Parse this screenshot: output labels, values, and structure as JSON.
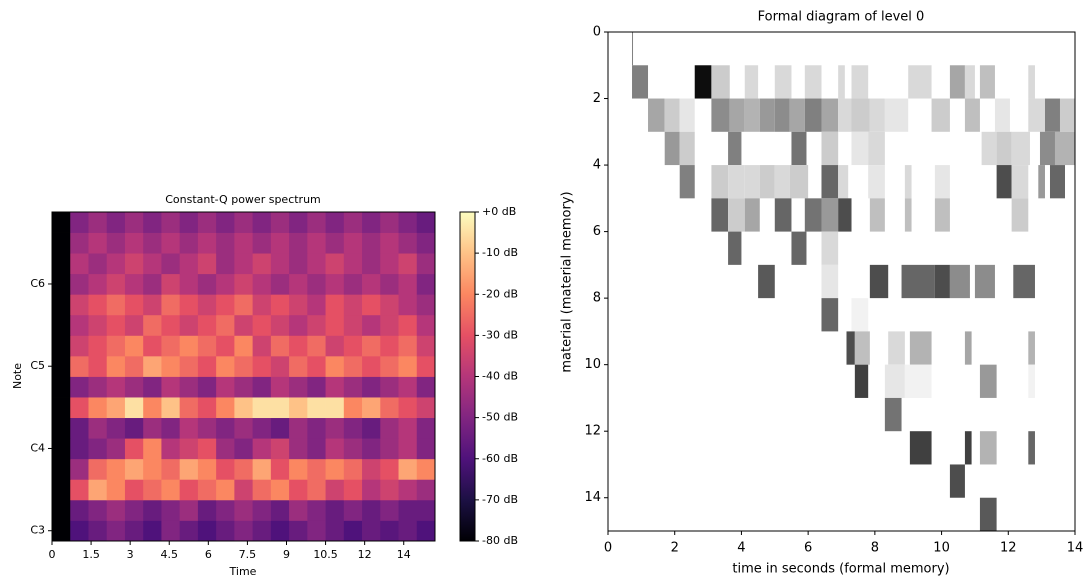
{
  "chart_data": [
    {
      "type": "heatmap",
      "title": "Constant-Q power spectrum",
      "xlabel": "Time",
      "ylabel": "Note",
      "colormap": "magma",
      "xlim": [
        0,
        14.7
      ],
      "ylim": [
        46.5,
        94.5
      ],
      "xticks": [
        0,
        1.5,
        3,
        4.5,
        6,
        7.5,
        9,
        10.5,
        12,
        {
          "value": 13.5,
          "label": "14"
        }
      ],
      "yticks": [
        {
          "value": 48,
          "label": "C3"
        },
        {
          "value": 60,
          "label": "C4"
        },
        {
          "value": 72,
          "label": "C5"
        },
        {
          "value": 84,
          "label": "C6"
        }
      ],
      "zlim": [
        -80,
        0
      ],
      "zticks": [
        {
          "value": 0,
          "label": "+0 dB"
        },
        {
          "value": -10,
          "label": "-10 dB"
        },
        {
          "value": -20,
          "label": "-20 dB"
        },
        {
          "value": -30,
          "label": "-30 dB"
        },
        {
          "value": -40,
          "label": "-40 dB"
        },
        {
          "value": -50,
          "label": "-50 dB"
        },
        {
          "value": -60,
          "label": "-60 dB"
        },
        {
          "value": -70,
          "label": "-70 dB"
        },
        {
          "value": -80,
          "label": "-80 dB"
        }
      ],
      "x_edges": [
        0,
        0.7,
        1.4,
        2.1,
        2.8,
        3.5,
        4.2,
        4.9,
        5.6,
        6.3,
        7,
        7.7,
        8.4,
        9.1,
        9.8,
        10.5,
        11.2,
        11.9,
        12.6,
        13.3,
        14,
        14.7
      ],
      "y_edges": [
        46.5,
        49.5,
        52.5,
        55.5,
        58.5,
        61.5,
        64.5,
        67.5,
        70.5,
        73.5,
        76.5,
        79.5,
        82.5,
        85.5,
        88.5,
        91.5,
        94.5
      ],
      "z": [
        [
          -80,
          -60,
          -55,
          -50,
          -55,
          -60,
          -50,
          -55,
          -60,
          -55,
          -50,
          -55,
          -60,
          -55,
          -50,
          -55,
          -60,
          -55,
          -58,
          -55,
          -60
        ],
        [
          -80,
          -55,
          -50,
          -45,
          -50,
          -55,
          -50,
          -45,
          -55,
          -50,
          -45,
          -50,
          -55,
          -45,
          -50,
          -55,
          -50,
          -55,
          -50,
          -55,
          -55
        ],
        [
          -80,
          -30,
          -15,
          -20,
          -30,
          -25,
          -20,
          -30,
          -25,
          -20,
          -35,
          -25,
          -20,
          -30,
          -25,
          -35,
          -30,
          -40,
          -35,
          -40,
          -45
        ],
        [
          -80,
          -45,
          -25,
          -20,
          -15,
          -20,
          -25,
          -15,
          -20,
          -30,
          -25,
          -15,
          -30,
          -20,
          -25,
          -20,
          -25,
          -35,
          -30,
          -15,
          -20
        ],
        [
          -80,
          -55,
          -50,
          -45,
          -30,
          -20,
          -40,
          -35,
          -30,
          -45,
          -50,
          -40,
          -35,
          -45,
          -50,
          -40,
          -45,
          -50,
          -45,
          -40,
          -50
        ],
        [
          -80,
          -55,
          -45,
          -50,
          -55,
          -45,
          -50,
          -40,
          -45,
          -50,
          -45,
          -50,
          -55,
          -45,
          -50,
          -45,
          -50,
          -55,
          -45,
          -40,
          -50
        ],
        [
          -80,
          -30,
          -20,
          -15,
          -5,
          -20,
          -10,
          -25,
          -30,
          -20,
          -10,
          -5,
          -5,
          -10,
          -5,
          -5,
          -20,
          -15,
          -25,
          -30,
          -35
        ],
        [
          -80,
          -50,
          -45,
          -40,
          -45,
          -50,
          -40,
          -45,
          -50,
          -40,
          -45,
          -50,
          -40,
          -45,
          -50,
          -40,
          -45,
          -50,
          -45,
          -40,
          -50
        ],
        [
          -80,
          -25,
          -30,
          -20,
          -25,
          -15,
          -20,
          -25,
          -30,
          -20,
          -25,
          -30,
          -35,
          -25,
          -30,
          -20,
          -25,
          -30,
          -25,
          -20,
          -30
        ],
        [
          -80,
          -35,
          -30,
          -25,
          -20,
          -30,
          -25,
          -20,
          -25,
          -30,
          -20,
          -35,
          -25,
          -30,
          -25,
          -35,
          -30,
          -25,
          -30,
          -25,
          -35
        ],
        [
          -80,
          -40,
          -35,
          -30,
          -35,
          -25,
          -30,
          -35,
          -30,
          -25,
          -35,
          -30,
          -35,
          -40,
          -35,
          -30,
          -35,
          -40,
          -35,
          -30,
          -40
        ],
        [
          -80,
          -35,
          -30,
          -25,
          -30,
          -35,
          -25,
          -30,
          -35,
          -30,
          -25,
          -35,
          -30,
          -35,
          -40,
          -30,
          -35,
          -30,
          -35,
          -40,
          -45
        ],
        [
          -80,
          -45,
          -40,
          -35,
          -40,
          -45,
          -35,
          -40,
          -45,
          -40,
          -35,
          -40,
          -45,
          -40,
          -45,
          -40,
          -45,
          -40,
          -45,
          -40,
          -50
        ],
        [
          -80,
          -40,
          -45,
          -40,
          -35,
          -40,
          -45,
          -40,
          -35,
          -45,
          -40,
          -35,
          -40,
          -45,
          -40,
          -35,
          -40,
          -45,
          -40,
          -35,
          -45
        ],
        [
          -80,
          -45,
          -40,
          -45,
          -40,
          -45,
          -40,
          -45,
          -40,
          -45,
          -40,
          -45,
          -40,
          -45,
          -40,
          -45,
          -40,
          -45,
          -40,
          -45,
          -50
        ],
        [
          -80,
          -50,
          -45,
          -50,
          -45,
          -50,
          -45,
          -50,
          -45,
          -50,
          -45,
          -50,
          -45,
          -50,
          -45,
          -50,
          -45,
          -50,
          -45,
          -50,
          -55
        ]
      ]
    },
    {
      "type": "blocks",
      "title": "Formal diagram of level 0",
      "xlabel": "time in seconds (formal memory)",
      "ylabel": "material (material memory)",
      "colormap": "gray_r",
      "xlim": [
        0,
        14
      ],
      "ylim": [
        0,
        15
      ],
      "y_inverted": true,
      "xticks": [
        0,
        2,
        4,
        6,
        8,
        10,
        12,
        14
      ],
      "yticks": [
        0,
        2,
        4,
        6,
        8,
        10,
        12,
        14
      ],
      "cells": [
        [
          0.72,
          0.75,
          0,
          0.5
        ],
        [
          0.72,
          1.2,
          1,
          0.5
        ],
        [
          2.6,
          3.1,
          1,
          0.95
        ],
        [
          3.1,
          3.65,
          1,
          0.2
        ],
        [
          4.1,
          4.5,
          1,
          0.15
        ],
        [
          5.0,
          5.5,
          1,
          0.15
        ],
        [
          5.9,
          6.4,
          1,
          0.15
        ],
        [
          6.9,
          7.1,
          1,
          0.15
        ],
        [
          7.3,
          7.8,
          1,
          0.15
        ],
        [
          9.0,
          9.7,
          1,
          0.15
        ],
        [
          10.25,
          10.7,
          1,
          0.35
        ],
        [
          10.7,
          11.0,
          1,
          0.15
        ],
        [
          11.15,
          11.6,
          1,
          0.25
        ],
        [
          12.6,
          12.8,
          1,
          0.15
        ],
        [
          1.2,
          1.7,
          2,
          0.35
        ],
        [
          1.7,
          2.15,
          2,
          0.2
        ],
        [
          2.15,
          2.6,
          2,
          0.1
        ],
        [
          3.1,
          3.65,
          2,
          0.45
        ],
        [
          3.65,
          4.1,
          2,
          0.35
        ],
        [
          4.1,
          4.55,
          2,
          0.3
        ],
        [
          4.55,
          5.0,
          2,
          0.4
        ],
        [
          5.0,
          5.45,
          2,
          0.45
        ],
        [
          5.45,
          5.9,
          2,
          0.35
        ],
        [
          5.9,
          6.4,
          2,
          0.5
        ],
        [
          6.4,
          6.9,
          2,
          0.35
        ],
        [
          6.9,
          7.3,
          2,
          0.15
        ],
        [
          7.3,
          7.85,
          2,
          0.2
        ],
        [
          7.85,
          8.3,
          2,
          0.15
        ],
        [
          8.3,
          9.0,
          2,
          0.1
        ],
        [
          9.7,
          10.25,
          2,
          0.2
        ],
        [
          10.7,
          11.15,
          2,
          0.25
        ],
        [
          11.6,
          12.05,
          2,
          0.1
        ],
        [
          12.6,
          13.1,
          2,
          0.15
        ],
        [
          13.1,
          13.55,
          2,
          0.5
        ],
        [
          13.55,
          14,
          2,
          0.2
        ],
        [
          1.7,
          2.15,
          3,
          0.4
        ],
        [
          2.15,
          2.6,
          3,
          0.2
        ],
        [
          3.6,
          4.0,
          3,
          0.5
        ],
        [
          5.5,
          5.95,
          3,
          0.55
        ],
        [
          6.4,
          6.9,
          3,
          0.2
        ],
        [
          7.3,
          7.8,
          3,
          0.1
        ],
        [
          7.8,
          8.3,
          3,
          0.15
        ],
        [
          11.2,
          11.65,
          3,
          0.15
        ],
        [
          11.65,
          12.1,
          3,
          0.2
        ],
        [
          12.1,
          12.65,
          3,
          0.15
        ],
        [
          12.95,
          13.4,
          3,
          0.45
        ],
        [
          13.4,
          14,
          3,
          0.3
        ],
        [
          2.15,
          2.6,
          4,
          0.5
        ],
        [
          3.1,
          3.6,
          4,
          0.2
        ],
        [
          3.6,
          4.1,
          4,
          0.15
        ],
        [
          4.1,
          4.55,
          4,
          0.15
        ],
        [
          4.55,
          5.0,
          4,
          0.2
        ],
        [
          5.0,
          5.45,
          4,
          0.15
        ],
        [
          5.45,
          6.0,
          4,
          0.2
        ],
        [
          6.4,
          6.9,
          4,
          0.6
        ],
        [
          6.9,
          7.2,
          4,
          0.15
        ],
        [
          7.8,
          8.3,
          4,
          0.1
        ],
        [
          8.9,
          9.1,
          4,
          0.15
        ],
        [
          9.8,
          10.25,
          4,
          0.1
        ],
        [
          11.65,
          12.1,
          4,
          0.7
        ],
        [
          12.1,
          12.6,
          4,
          0.15
        ],
        [
          12.9,
          13.1,
          4,
          0.4
        ],
        [
          13.25,
          13.7,
          4,
          0.6
        ],
        [
          3.1,
          3.6,
          5,
          0.6
        ],
        [
          3.6,
          4.1,
          5,
          0.2
        ],
        [
          4.1,
          4.55,
          5,
          0.35
        ],
        [
          5.0,
          5.5,
          5,
          0.6
        ],
        [
          5.9,
          6.4,
          5,
          0.55
        ],
        [
          6.4,
          6.9,
          5,
          0.4
        ],
        [
          6.9,
          7.3,
          5,
          0.7
        ],
        [
          7.85,
          8.3,
          5,
          0.25
        ],
        [
          8.9,
          9.1,
          5,
          0.25
        ],
        [
          9.8,
          10.25,
          5,
          0.25
        ],
        [
          12.1,
          12.6,
          5,
          0.2
        ],
        [
          3.6,
          4.0,
          6,
          0.6
        ],
        [
          5.5,
          5.95,
          6,
          0.6
        ],
        [
          6.4,
          6.9,
          6,
          0.15
        ],
        [
          4.5,
          5.0,
          7,
          0.65
        ],
        [
          6.4,
          6.9,
          7,
          0.1
        ],
        [
          7.85,
          8.4,
          7,
          0.7
        ],
        [
          8.8,
          9.8,
          7,
          0.6
        ],
        [
          9.8,
          10.25,
          7,
          0.7
        ],
        [
          10.25,
          10.85,
          7,
          0.45
        ],
        [
          11.0,
          11.6,
          7,
          0.45
        ],
        [
          12.15,
          12.8,
          7,
          0.6
        ],
        [
          6.4,
          6.9,
          8,
          0.6
        ],
        [
          7.3,
          7.8,
          8,
          0.05
        ],
        [
          7.15,
          7.4,
          9,
          0.7
        ],
        [
          7.4,
          7.85,
          9,
          0.25
        ],
        [
          8.4,
          8.9,
          9,
          0.15
        ],
        [
          9.05,
          9.7,
          9,
          0.3
        ],
        [
          10.7,
          10.9,
          9,
          0.35
        ],
        [
          12.6,
          12.8,
          9,
          0.3
        ],
        [
          7.4,
          7.8,
          10,
          0.75
        ],
        [
          8.3,
          8.9,
          10,
          0.1
        ],
        [
          8.9,
          9.7,
          10,
          0.05
        ],
        [
          11.15,
          11.65,
          10,
          0.4
        ],
        [
          12.6,
          12.8,
          10,
          0.05
        ],
        [
          8.3,
          8.8,
          11,
          0.55
        ],
        [
          9.05,
          9.7,
          12,
          0.75
        ],
        [
          10.7,
          10.9,
          12,
          0.75
        ],
        [
          11.15,
          11.65,
          12,
          0.3
        ],
        [
          12.6,
          12.8,
          12,
          0.6
        ],
        [
          10.25,
          10.7,
          13,
          0.7
        ],
        [
          11.15,
          11.65,
          14,
          0.65
        ]
      ]
    }
  ]
}
